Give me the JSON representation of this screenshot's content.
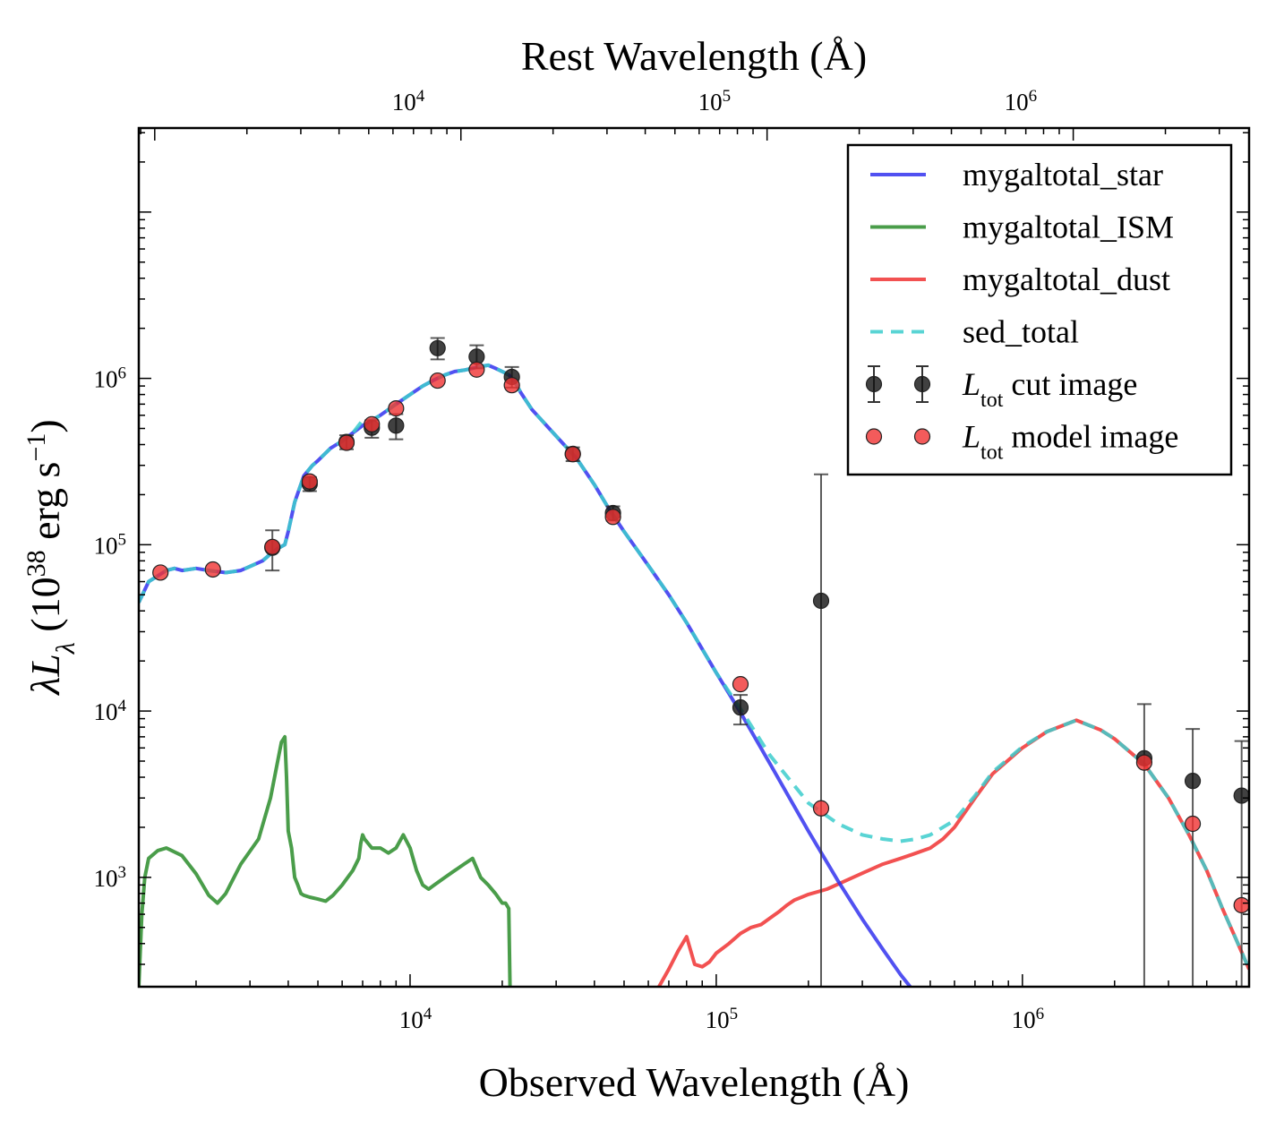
{
  "chart_data": {
    "type": "line",
    "xlabel": "Observed Wavelength (Å)",
    "top_xlabel": "Rest Wavelength (Å)",
    "ylabel": "λL_λ (10^38 erg s^-1)",
    "xscale": "log",
    "yscale": "log",
    "xlim": [
      1300,
      5500000
    ],
    "ylim": [
      220,
      32000000
    ],
    "grid": false,
    "legend_location": "top-right",
    "x_ticks": [
      {
        "value": 10000,
        "label": "10",
        "exp": "4"
      },
      {
        "value": 100000,
        "label": "10",
        "exp": "5"
      },
      {
        "value": 1000000,
        "label": "10",
        "exp": "6"
      }
    ],
    "y_ticks": [
      {
        "value": 1000,
        "label": "10",
        "exp": "3"
      },
      {
        "value": 10000,
        "label": "10",
        "exp": "4"
      },
      {
        "value": 100000,
        "label": "10",
        "exp": "5"
      },
      {
        "value": 1000000,
        "label": "10",
        "exp": "6"
      }
    ],
    "colors": {
      "star": "#3333ee",
      "ism": "#2a8c2a",
      "dust": "#f03232",
      "sed_total": "#3ccccc",
      "cut_image": "#111111",
      "model_image": "#f03232"
    },
    "series": [
      {
        "key": "star",
        "name": "mygaltotal_star",
        "style": "solid",
        "x": [
          1300,
          1400,
          1500,
          1600,
          1700,
          1800,
          2000,
          2200,
          2500,
          2800,
          3000,
          3300,
          3500,
          3700,
          3900,
          4000,
          4200,
          4500,
          4800,
          5000,
          5500,
          6000,
          6500,
          7000,
          7500,
          8000,
          9000,
          10000,
          11000,
          12000,
          13000,
          14000,
          15000,
          16000,
          17000,
          18000,
          19000,
          20000,
          21000,
          22000,
          23000,
          25000,
          30000,
          35000,
          40000,
          45000,
          50000,
          60000,
          70000,
          80000,
          100000,
          120000,
          150000,
          200000,
          250000,
          300000,
          350000,
          400000,
          430000
        ],
        "y": [
          45000,
          60000,
          65000,
          70000,
          72000,
          70000,
          72000,
          70000,
          68000,
          70000,
          74000,
          80000,
          88000,
          95000,
          100000,
          120000,
          180000,
          260000,
          300000,
          320000,
          380000,
          420000,
          470000,
          520000,
          560000,
          600000,
          700000,
          800000,
          900000,
          980000,
          1050000,
          1100000,
          1120000,
          1150000,
          1180000,
          1200000,
          1150000,
          1100000,
          1050000,
          950000,
          820000,
          650000,
          450000,
          330000,
          230000,
          160000,
          120000,
          75000,
          50000,
          34000,
          17000,
          9800,
          4800,
          1900,
          950,
          560,
          370,
          260,
          220
        ]
      },
      {
        "key": "ism",
        "name": "mygaltotal_ISM",
        "style": "solid",
        "x": [
          1300,
          1330,
          1360,
          1400,
          1500,
          1600,
          1800,
          2000,
          2200,
          2350,
          2500,
          2800,
          3200,
          3500,
          3800,
          3900,
          3950,
          4000,
          4100,
          4200,
          4300,
          4400,
          4500,
          4700,
          5000,
          5300,
          5600,
          6000,
          6500,
          6800,
          6900,
          7000,
          7100,
          7500,
          8000,
          8500,
          9000,
          9500,
          10000,
          10500,
          11000,
          11500,
          12000,
          13000,
          14000,
          15000,
          16000,
          17000,
          18000,
          19000,
          20000,
          20500,
          21000,
          21200
        ],
        "y": [
          220,
          600,
          1000,
          1300,
          1450,
          1500,
          1350,
          1050,
          780,
          700,
          800,
          1200,
          1700,
          3000,
          6500,
          7000,
          4000,
          1900,
          1500,
          1000,
          900,
          800,
          780,
          760,
          740,
          720,
          780,
          900,
          1100,
          1300,
          1600,
          1800,
          1700,
          1500,
          1500,
          1400,
          1500,
          1800,
          1500,
          1100,
          900,
          850,
          900,
          1000,
          1100,
          1200,
          1300,
          1000,
          900,
          800,
          700,
          700,
          650,
          220
        ]
      },
      {
        "key": "dust",
        "name": "mygaltotal_dust",
        "style": "solid",
        "x": [
          65000,
          70000,
          75000,
          80000,
          85000,
          90000,
          95000,
          100000,
          110000,
          120000,
          130000,
          140000,
          150000,
          160000,
          170000,
          180000,
          190000,
          200000,
          230000,
          260000,
          300000,
          350000,
          400000,
          450000,
          500000,
          550000,
          600000,
          700000,
          800000,
          1000000,
          1200000,
          1500000,
          1800000,
          2000000,
          2500000,
          3000000,
          3500000,
          4000000,
          4500000,
          5000000,
          5500000
        ],
        "y": [
          220,
          280,
          360,
          440,
          300,
          290,
          310,
          350,
          400,
          460,
          500,
          520,
          570,
          620,
          680,
          730,
          760,
          790,
          850,
          940,
          1060,
          1200,
          1300,
          1400,
          1500,
          1700,
          2000,
          3000,
          4200,
          6000,
          7500,
          8800,
          7700,
          6800,
          4800,
          3000,
          1800,
          1100,
          650,
          420,
          280
        ]
      },
      {
        "key": "sed_total",
        "name": "sed_total",
        "style": "dashed",
        "x": [
          1300,
          1400,
          1500,
          1600,
          1700,
          1800,
          2000,
          2200,
          2500,
          2800,
          3000,
          3300,
          3500,
          3700,
          3900,
          4000,
          4200,
          4500,
          4800,
          5000,
          5500,
          6000,
          6500,
          7000,
          7500,
          8000,
          9000,
          10000,
          11000,
          12000,
          13000,
          14000,
          15000,
          16000,
          17000,
          18000,
          19000,
          20000,
          21000,
          22000,
          23000,
          25000,
          30000,
          35000,
          40000,
          45000,
          50000,
          60000,
          70000,
          80000,
          100000,
          120000,
          150000,
          200000,
          250000,
          300000,
          350000,
          400000,
          450000,
          500000,
          600000,
          700000,
          800000,
          1000000,
          1200000,
          1500000,
          1800000,
          2000000,
          2500000,
          3000000,
          3500000,
          4000000,
          4500000,
          5000000,
          5500000
        ],
        "y": [
          45000,
          60000,
          65000,
          70000,
          72000,
          70000,
          72000,
          70000,
          68000,
          70000,
          74000,
          80000,
          88000,
          95000,
          100000,
          120000,
          180000,
          260000,
          300000,
          320000,
          380000,
          420000,
          470000,
          560000,
          560000,
          600000,
          700000,
          800000,
          900000,
          980000,
          1050000,
          1100000,
          1120000,
          1150000,
          1180000,
          1200000,
          1150000,
          1100000,
          1050000,
          950000,
          820000,
          650000,
          450000,
          330000,
          230000,
          160000,
          120000,
          75000,
          50000,
          34000,
          17000,
          10300,
          5400,
          2800,
          2100,
          1800,
          1700,
          1650,
          1700,
          1800,
          2200,
          3100,
          4300,
          6100,
          7500,
          8800,
          7700,
          6800,
          4800,
          3000,
          1800,
          1100,
          650,
          420,
          280
        ]
      }
    ],
    "scatter_series": [
      {
        "key": "cut_image",
        "name": "L_tot cut image",
        "name_main": "L",
        "name_sub": "tot",
        "name_rest": " cut image",
        "points": [
          {
            "x": 3550,
            "y": 96000,
            "yerr_low": 70000,
            "yerr_high": 122000
          },
          {
            "x": 4700,
            "y": 232000,
            "yerr_low": 210000,
            "yerr_high": 255000
          },
          {
            "x": 6200,
            "y": 415000,
            "yerr_low": 375000,
            "yerr_high": 455000
          },
          {
            "x": 7500,
            "y": 505000,
            "yerr_low": 440000,
            "yerr_high": 560000
          },
          {
            "x": 9000,
            "y": 520000,
            "yerr_low": 430000,
            "yerr_high": 610000
          },
          {
            "x": 12300,
            "y": 1520000,
            "yerr_low": 1300000,
            "yerr_high": 1750000
          },
          {
            "x": 16500,
            "y": 1350000,
            "yerr_low": 1150000,
            "yerr_high": 1580000
          },
          {
            "x": 21500,
            "y": 1020000,
            "yerr_low": 880000,
            "yerr_high": 1170000
          },
          {
            "x": 34000,
            "y": 352000,
            "yerr_low": 318000,
            "yerr_high": 385000
          },
          {
            "x": 46000,
            "y": 155000,
            "yerr_low": 140000,
            "yerr_high": 170000
          },
          {
            "x": 120000,
            "y": 10500,
            "yerr_low": 8300,
            "yerr_high": 12500
          },
          {
            "x": 220000,
            "y": 46000,
            "yerr_low": 220,
            "yerr_high": 265000
          },
          {
            "x": 2500000,
            "y": 5200,
            "yerr_low": 220,
            "yerr_high": 11000
          },
          {
            "x": 3600000,
            "y": 3800,
            "yerr_low": 220,
            "yerr_high": 7800
          },
          {
            "x": 5200000,
            "y": 3100,
            "yerr_low": 220,
            "yerr_high": 6600
          }
        ]
      },
      {
        "key": "model_image",
        "name": "L_tot model image",
        "name_main": "L",
        "name_sub": "tot",
        "name_rest": " model image",
        "points": [
          {
            "x": 1530,
            "y": 68000
          },
          {
            "x": 2270,
            "y": 71000
          },
          {
            "x": 3550,
            "y": 97000
          },
          {
            "x": 4700,
            "y": 240000
          },
          {
            "x": 6200,
            "y": 410000
          },
          {
            "x": 7500,
            "y": 530000
          },
          {
            "x": 9000,
            "y": 660000
          },
          {
            "x": 12300,
            "y": 970000
          },
          {
            "x": 16500,
            "y": 1130000
          },
          {
            "x": 21500,
            "y": 910000
          },
          {
            "x": 34000,
            "y": 350000
          },
          {
            "x": 46000,
            "y": 147000
          },
          {
            "x": 120000,
            "y": 14500
          },
          {
            "x": 220000,
            "y": 2600
          },
          {
            "x": 2500000,
            "y": 4900
          },
          {
            "x": 3600000,
            "y": 2100
          },
          {
            "x": 5200000,
            "y": 680
          }
        ]
      }
    ]
  }
}
